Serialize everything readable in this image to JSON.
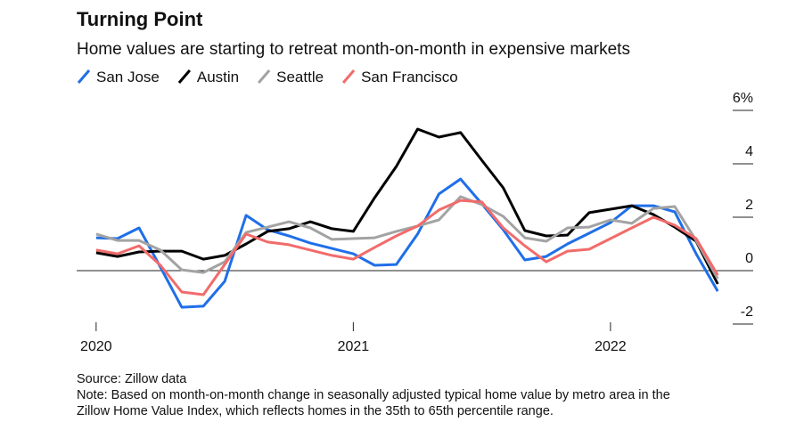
{
  "chart_data": {
    "type": "line",
    "title": "Turning Point",
    "subtitle": "Home values are starting to retreat month-on-month in expensive markets",
    "source": "Source: Zillow data",
    "note": [
      "Note: Based on month-on-month change in seasonally adjusted typical home value by metro area in the",
      "Zillow Home Value Index, which reflects homes in the 35th to 65th percentile range."
    ],
    "x": [
      2020,
      2020.083,
      2020.167,
      2020.25,
      2020.333,
      2020.417,
      2020.5,
      2020.583,
      2020.667,
      2020.75,
      2020.833,
      2020.917,
      2021,
      2021.083,
      2021.167,
      2021.25,
      2021.333,
      2021.417,
      2021.5,
      2021.583,
      2021.667,
      2021.75,
      2021.833,
      2021.917,
      2022,
      2022.083,
      2022.167,
      2022.25,
      2022.333,
      2022.417
    ],
    "xlim": [
      2019.9,
      2022.6
    ],
    "xticks": [
      {
        "value": 2020,
        "label": "2020"
      },
      {
        "value": 2021,
        "label": "2021"
      },
      {
        "value": 2022,
        "label": "2022"
      }
    ],
    "ylim": [
      -2,
      6
    ],
    "yticks": [
      {
        "value": 6,
        "label": "6%"
      },
      4,
      2,
      0,
      -2
    ],
    "series": [
      {
        "name": "San Jose",
        "color": "#1f6fe8",
        "values": [
          1.23,
          1.2,
          1.6,
          0.13,
          -1.37,
          -1.33,
          -0.4,
          2.07,
          1.53,
          1.3,
          1.03,
          0.83,
          0.63,
          0.2,
          0.23,
          1.37,
          2.87,
          3.43,
          2.5,
          1.53,
          0.4,
          0.53,
          1.0,
          1.4,
          1.8,
          2.43,
          2.43,
          2.2,
          0.63,
          -0.77
        ]
      },
      {
        "name": "Austin",
        "color": "#000000",
        "values": [
          0.67,
          0.53,
          0.7,
          0.73,
          0.73,
          0.43,
          0.57,
          1.0,
          1.47,
          1.57,
          1.83,
          1.57,
          1.47,
          2.73,
          3.9,
          5.3,
          5.0,
          5.17,
          4.13,
          3.1,
          1.5,
          1.3,
          1.33,
          2.17,
          2.3,
          2.43,
          2.1,
          1.63,
          1.1,
          -0.5
        ]
      },
      {
        "name": "Seattle",
        "color": "#a3a3a3",
        "values": [
          1.37,
          1.13,
          1.13,
          0.77,
          0.03,
          -0.07,
          0.33,
          1.43,
          1.63,
          1.83,
          1.6,
          1.17,
          1.2,
          1.23,
          1.47,
          1.67,
          1.9,
          2.77,
          2.47,
          2.03,
          1.23,
          1.1,
          1.6,
          1.63,
          1.9,
          1.77,
          2.33,
          2.4,
          1.13,
          -0.3
        ]
      },
      {
        "name": "San Francisco",
        "color": "#f26b6b",
        "values": [
          0.77,
          0.63,
          0.93,
          0.2,
          -0.8,
          -0.9,
          0.23,
          1.37,
          1.07,
          0.97,
          0.77,
          0.57,
          0.43,
          0.87,
          1.3,
          1.67,
          2.27,
          2.63,
          2.57,
          1.6,
          0.93,
          0.33,
          0.73,
          0.8,
          1.2,
          1.6,
          2.0,
          1.7,
          1.2,
          -0.17
        ]
      }
    ]
  }
}
